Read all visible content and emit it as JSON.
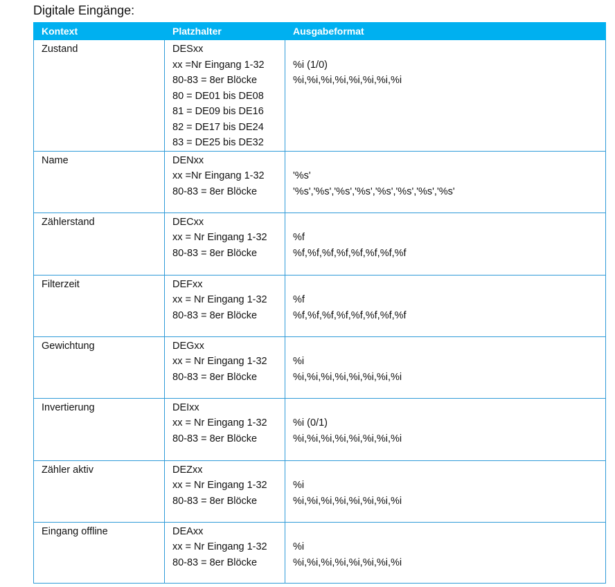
{
  "title": "Digitale Eingänge:",
  "header": {
    "col1": "Kontext",
    "col2": "Platzhalter",
    "col3": "Ausgabeformat"
  },
  "rows": [
    {
      "context": "Zustand",
      "placeholder": [
        "DESxx",
        "xx =Nr Eingang 1-32",
        "80-83 = 8er Blöcke",
        "80 = DE01 bis DE08",
        "81 = DE09 bis DE16",
        "82 = DE17 bis DE24",
        "83 = DE25 bis DE32"
      ],
      "format": [
        "%i (1/0)",
        "%i,%i,%i,%i,%i,%i,%i,%i"
      ]
    },
    {
      "context": "Name",
      "placeholder": [
        "DENxx",
        "xx =Nr Eingang 1-32",
        "80-83 = 8er Blöcke"
      ],
      "format": [
        "'%s'",
        "'%s','%s','%s','%s','%s','%s','%s','%s'"
      ]
    },
    {
      "context": "Zählerstand",
      "placeholder": [
        "DECxx",
        "xx = Nr Eingang 1-32",
        "80-83 = 8er Blöcke"
      ],
      "format": [
        "%f",
        "%f,%f,%f,%f,%f,%f,%f,%f"
      ]
    },
    {
      "context": "Filterzeit",
      "placeholder": [
        "DEFxx",
        "xx = Nr Eingang 1-32",
        "80-83 = 8er Blöcke"
      ],
      "format": [
        "%f",
        "%f,%f,%f,%f,%f,%f,%f,%f"
      ]
    },
    {
      "context": "Gewichtung",
      "placeholder": [
        "DEGxx",
        "xx = Nr Eingang 1-32",
        "80-83 = 8er Blöcke"
      ],
      "format": [
        "%i",
        "%i,%i,%i,%i,%i,%i,%i,%i"
      ]
    },
    {
      "context": "Invertierung",
      "placeholder": [
        "DEIxx",
        "xx = Nr Eingang 1-32",
        "80-83 = 8er Blöcke"
      ],
      "format": [
        "%i (0/1)",
        "%i,%i,%i,%i,%i,%i,%i,%i"
      ]
    },
    {
      "context": "Zähler aktiv",
      "placeholder": [
        "DEZxx",
        "xx = Nr Eingang 1-32",
        "80-83 = 8er Blöcke"
      ],
      "format": [
        "%i",
        "%i,%i,%i,%i,%i,%i,%i,%i"
      ]
    },
    {
      "context": "Eingang offline",
      "placeholder": [
        "DEAxx",
        "xx = Nr Eingang 1-32",
        "80-83 = 8er Blöcke"
      ],
      "format": [
        "%i",
        "%i,%i,%i,%i,%i,%i,%i,%i"
      ]
    }
  ],
  "colors": {
    "header_bg": "#00B0F0",
    "border": "#2e9ad8"
  }
}
